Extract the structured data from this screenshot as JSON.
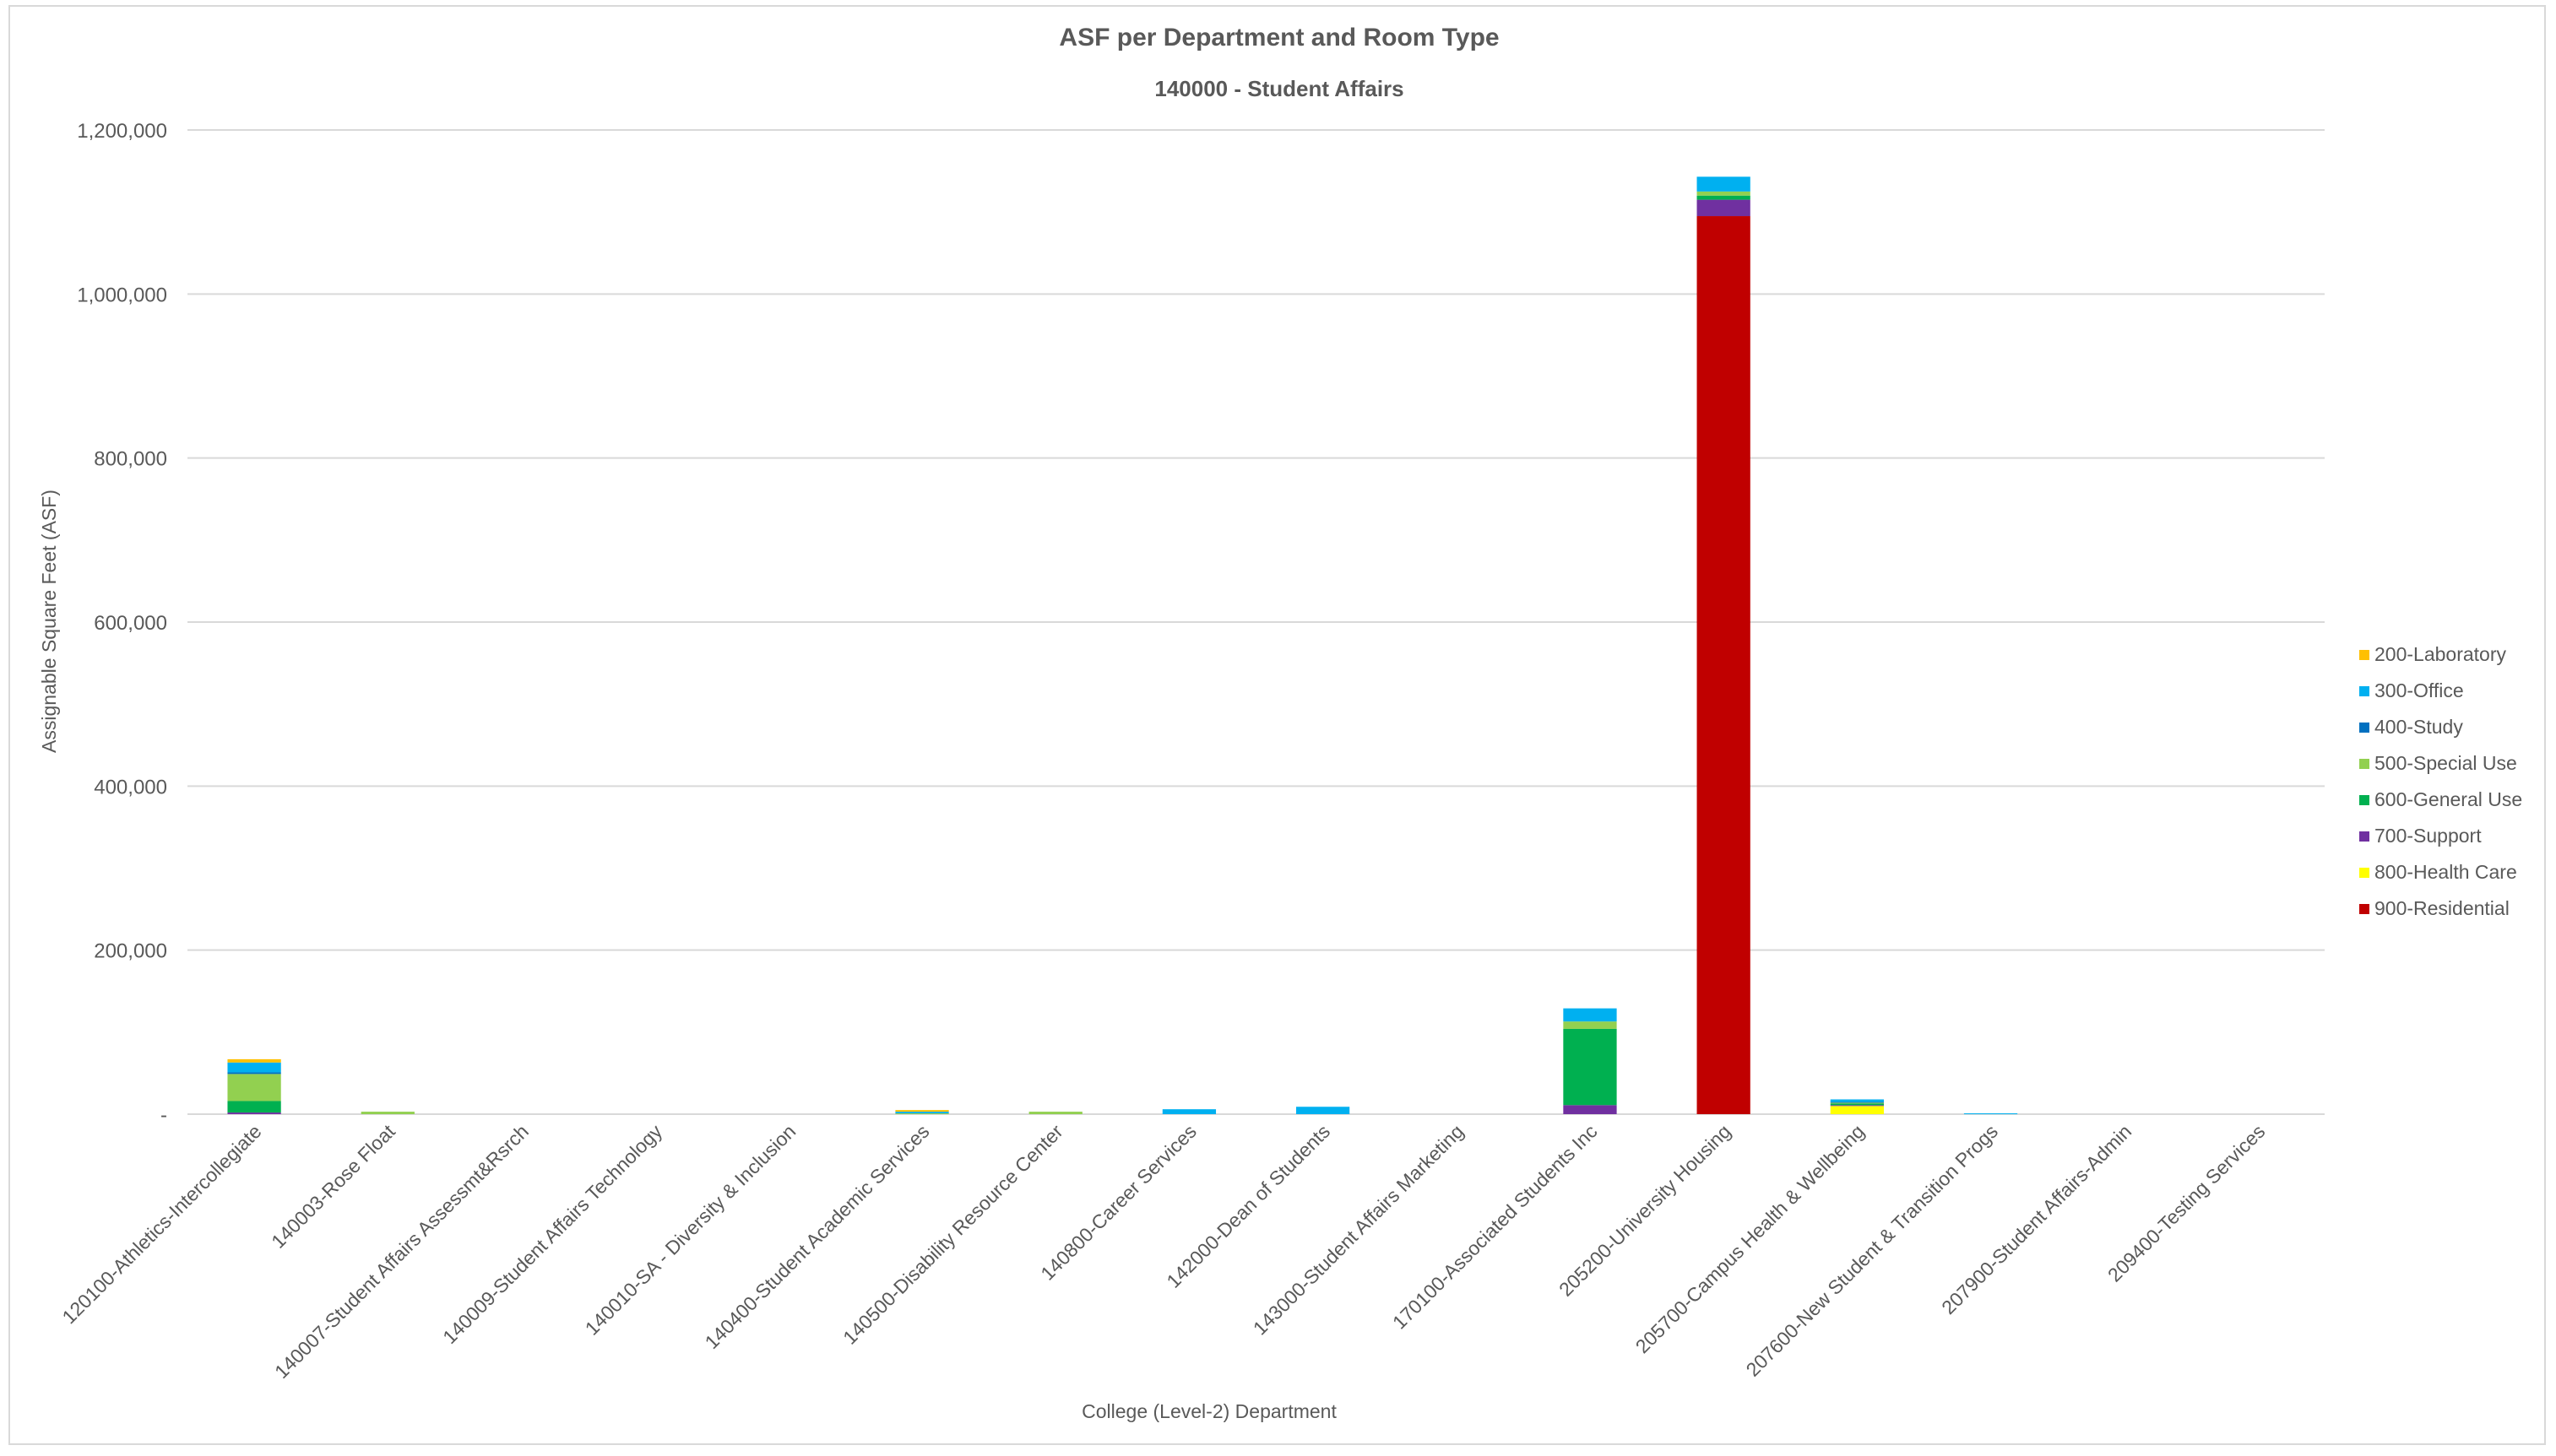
{
  "chart_data": {
    "type": "bar",
    "stacked": true,
    "title": "ASF per Department and Room Type",
    "subtitle": "140000 - Student Affairs",
    "xlabel": "College (Level-2) Department",
    "ylabel": "Assignable Square Feet (ASF)",
    "ylim": [
      0,
      1200000
    ],
    "yticks": [
      0,
      200000,
      400000,
      600000,
      800000,
      1000000,
      1200000
    ],
    "ytick_labels": [
      "-",
      "200,000",
      "400,000",
      "600,000",
      "800,000",
      "1,000,000",
      "1,200,000"
    ],
    "grid": true,
    "legend_position": "right",
    "categories": [
      "120100-Athletics-Intercollegiate",
      "140003-Rose Float",
      "140007-Student Affairs Assessmt&Rsrch",
      "140009-Student Affairs Technology",
      "140010-SA - Diversity & Inclusion",
      "140400-Student Academic Services",
      "140500-Disability Resource Center",
      "140800-Career Services",
      "142000-Dean of Students",
      "143000-Student Affairs Marketing",
      "170100-Associated Students Inc",
      "205200-University Housing",
      "205700-Campus Health & Wellbeing",
      "207600-New Student & Transition Progs",
      "207900-Student Affairs-Admin",
      "209400-Testing Services"
    ],
    "series": [
      {
        "name": "900-Residential",
        "color": "#c00000",
        "values": [
          0,
          0,
          0,
          0,
          0,
          0,
          0,
          0,
          0,
          0,
          0,
          1095000,
          0,
          0,
          0,
          0
        ]
      },
      {
        "name": "800-Health Care",
        "color": "#ffff00",
        "values": [
          0,
          0,
          0,
          0,
          0,
          0,
          0,
          0,
          0,
          0,
          0,
          0,
          10000,
          0,
          0,
          0
        ]
      },
      {
        "name": "700-Support",
        "color": "#7030a0",
        "values": [
          2000,
          0,
          0,
          0,
          0,
          0,
          0,
          0,
          0,
          0,
          11000,
          20000,
          1000,
          0,
          0,
          0
        ]
      },
      {
        "name": "600-General Use",
        "color": "#00b050",
        "values": [
          14000,
          0,
          0,
          0,
          0,
          0,
          0,
          0,
          0,
          0,
          93000,
          5000,
          2000,
          0,
          0,
          0
        ]
      },
      {
        "name": "500-Special Use",
        "color": "#92d050",
        "values": [
          33000,
          3000,
          0,
          0,
          0,
          1000,
          3000,
          0,
          0,
          0,
          9000,
          5000,
          1000,
          0,
          0,
          0
        ]
      },
      {
        "name": "400-Study",
        "color": "#0070c0",
        "values": [
          2000,
          0,
          0,
          0,
          0,
          0,
          0,
          0,
          0,
          0,
          0,
          0,
          1000,
          0,
          0,
          0
        ]
      },
      {
        "name": "300-Office",
        "color": "#00b0f0",
        "values": [
          12000,
          0,
          0,
          0,
          0,
          2000,
          0,
          6000,
          9000,
          0,
          16000,
          18000,
          3000,
          1000,
          0,
          0
        ]
      },
      {
        "name": "200-Laboratory",
        "color": "#ffc000",
        "values": [
          4000,
          0,
          0,
          0,
          0,
          2000,
          0,
          0,
          0,
          0,
          0,
          0,
          0,
          0,
          0,
          0
        ]
      }
    ],
    "legend_order": [
      "200-Laboratory",
      "300-Office",
      "400-Study",
      "500-Special Use",
      "600-General Use",
      "700-Support",
      "800-Health Care",
      "900-Residential"
    ]
  },
  "style": {
    "axis_text_color": "#595959",
    "title_color": "#595959",
    "grid_color": "#d9d9d9"
  }
}
